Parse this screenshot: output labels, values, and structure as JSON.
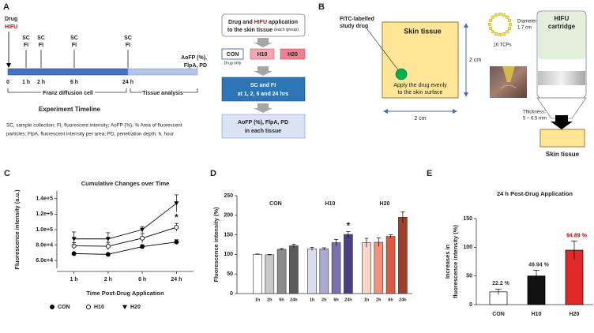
{
  "panel_labels": [
    "A",
    "B",
    "C",
    "D",
    "E"
  ],
  "timeline": {
    "drug": "Drug",
    "hifu": "HIFU",
    "marker_label": [
      "SC",
      "FI"
    ],
    "end_label": [
      "AoFP (%),",
      "FlpA, PD"
    ],
    "ticks": [
      "0",
      "1 h",
      "2 h",
      "6 h",
      "24 h"
    ],
    "phases": [
      "Franz diffusion cell",
      "Tissue analysis"
    ],
    "title": "Experiment Timeline",
    "footnote": [
      "SC, sample collection; FI, fluorescent intensity; AoFP (%), % Area of fluorescent",
      "particles; FlpA, fluorescent intensity per area; PD, penetration depth; h, hour"
    ]
  },
  "flow": {
    "step1": [
      "Drug and",
      "HIFU",
      "application",
      "to the skin tissue",
      "(each group)"
    ],
    "groups": [
      "CON",
      "H10",
      "H20"
    ],
    "group_note": "Drug only",
    "step2": [
      "SC and FI",
      "at 1, 2, 6 and 24 hrs"
    ],
    "step3": [
      "AoFP (%), FlpA, PD",
      "in each tissue"
    ]
  },
  "setup": {
    "drug_label": [
      "FITC-labelled",
      "study drug"
    ],
    "tissue_title": "Skin tissue",
    "instruction": [
      "Apply the drug evenly",
      "to the skin surface"
    ],
    "side": "2 cm",
    "diameter": [
      "Diameter:",
      "1.7 cm"
    ],
    "tcps": "16 TCPs",
    "cartridge": [
      "HIFU",
      "cartridge"
    ],
    "thickness": [
      "Thickness:",
      "5 – 6.5 mm"
    ],
    "bottom_label": "Skin tissue"
  },
  "chart_data": [
    {
      "type": "line",
      "title": "Cumulative Changes over Time",
      "x_label": "Time Post-Drug Application",
      "y_label": "Fluorescence intensity (a.u.)",
      "categories": [
        "1 h",
        "2 h",
        "6 h",
        "24 h"
      ],
      "ylim": [
        50000,
        150000
      ],
      "yticks": [
        {
          "value": 60000,
          "label": "6.0e+4"
        },
        {
          "value": 80000,
          "label": "8.0e+4"
        },
        {
          "value": 100000,
          "label": "1.0e+5"
        },
        {
          "value": 120000,
          "label": "1.2e+5"
        },
        {
          "value": 140000,
          "label": "1.4e+5"
        }
      ],
      "series": [
        {
          "name": "CON",
          "color": "#000000",
          "marker": "filled-circle",
          "values": [
            69000,
            68000,
            78000,
            84000
          ],
          "errors": [
            1000,
            1000,
            2500,
            3000
          ]
        },
        {
          "name": "H10",
          "color": "#000000",
          "marker": "open-circle",
          "values": [
            79000,
            78500,
            89000,
            103000
          ],
          "errors": [
            4000,
            5000,
            6000,
            5000
          ]
        },
        {
          "name": "H20",
          "color": "#000000",
          "marker": "filled-triangle-down",
          "values": [
            88000,
            88000,
            100000,
            134000
          ],
          "errors": [
            9000,
            8000,
            4000,
            11000
          ]
        }
      ],
      "annotations": [
        {
          "text": "*",
          "x": "24 h",
          "series": "H10"
        }
      ],
      "legend": "bottom"
    },
    {
      "type": "grouped-bar",
      "y_label": "Fluorescence intensity (%)",
      "categories": [
        "1h",
        "2h",
        "6h",
        "24h"
      ],
      "ylim": [
        0,
        250
      ],
      "yticks": [
        0,
        50,
        100,
        150,
        200,
        250
      ],
      "series": [
        {
          "name": "CON",
          "colors": [
            "#ffffff",
            "#c8c8c8",
            "#8c8c8c",
            "#5a5a5a"
          ],
          "values": [
            100,
            99,
            113,
            122
          ],
          "errors": [
            1,
            1,
            2,
            4
          ]
        },
        {
          "name": "H10",
          "colors": [
            "#dcdcf0",
            "#a9a9d6",
            "#7a70b0",
            "#4a3f80"
          ],
          "values": [
            114,
            114,
            130,
            151
          ],
          "errors": [
            4,
            3,
            8,
            7
          ]
        },
        {
          "name": "H20",
          "colors": [
            "#fbd5c5",
            "#f0907a",
            "#dc5a45",
            "#a0402c"
          ],
          "values": [
            130,
            131,
            146,
            195
          ],
          "errors": [
            11,
            11,
            4,
            14
          ]
        }
      ],
      "annotations": [
        {
          "text": "*",
          "x": "24h",
          "series": "H10"
        }
      ]
    },
    {
      "type": "bar",
      "title": "24 h Post-Drug Application",
      "y_label": [
        "Increases in",
        "fluorescence intensity (%)"
      ],
      "categories": [
        "CON",
        "H10",
        "H20"
      ],
      "ylim": [
        0,
        150
      ],
      "yticks": [
        0,
        50,
        100,
        150
      ],
      "values": [
        22.2,
        49.94,
        94.89
      ],
      "value_labels": [
        "22.2 %",
        "49.94 %",
        "94.89 %"
      ],
      "errors": [
        5,
        10,
        16
      ],
      "colors": [
        "#ffffff",
        "#111111",
        "#e02a2a"
      ]
    }
  ]
}
